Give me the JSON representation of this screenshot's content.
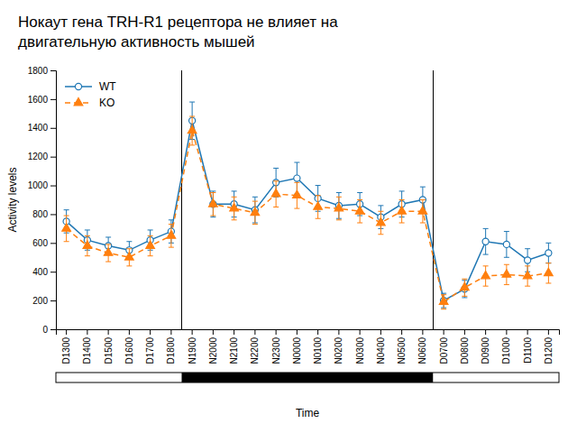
{
  "chart_data": {
    "type": "line",
    "title": "Нокаут гена TRH-R1 рецептора не влияет на",
    "subtitle": "двигательную активность мышей",
    "xlabel": "Time",
    "ylabel": "Activity levels",
    "categories": [
      "D1300",
      "D1400",
      "D1500",
      "D1600",
      "D1700",
      "D1800",
      "N1900",
      "N2000",
      "N2100",
      "N2200",
      "N2300",
      "N0000",
      "N0100",
      "N0200",
      "N0300",
      "N0400",
      "N0500",
      "N0600",
      "D0700",
      "D0800",
      "D0900",
      "D1000",
      "D1100",
      "D1200"
    ],
    "series": [
      {
        "name": "WT",
        "marker": "circle-open",
        "line_style": "solid",
        "values": [
          750,
          620,
          580,
          550,
          620,
          680,
          1450,
          870,
          870,
          830,
          1020,
          1050,
          910,
          860,
          870,
          780,
          870,
          900,
          200,
          280,
          610,
          590,
          480,
          530
        ],
        "errors": [
          80,
          70,
          60,
          60,
          70,
          80,
          130,
          90,
          90,
          90,
          100,
          110,
          90,
          90,
          80,
          80,
          90,
          90,
          50,
          60,
          90,
          90,
          80,
          70
        ]
      },
      {
        "name": "KO",
        "marker": "triangle",
        "line_style": "dashed",
        "values": [
          700,
          580,
          530,
          500,
          580,
          650,
          1380,
          870,
          840,
          810,
          940,
          930,
          850,
          840,
          820,
          740,
          820,
          820,
          190,
          290,
          370,
          380,
          370,
          390
        ],
        "errors": [
          90,
          70,
          60,
          60,
          70,
          80,
          100,
          80,
          80,
          80,
          90,
          90,
          80,
          80,
          80,
          80,
          80,
          80,
          50,
          60,
          70,
          70,
          70,
          70
        ]
      }
    ],
    "ylim": [
      0,
      1800
    ],
    "yticks": [
      0,
      200,
      400,
      600,
      800,
      1000,
      1200,
      1400,
      1600,
      1800
    ],
    "grid": false,
    "legend": "upper-left"
  }
}
